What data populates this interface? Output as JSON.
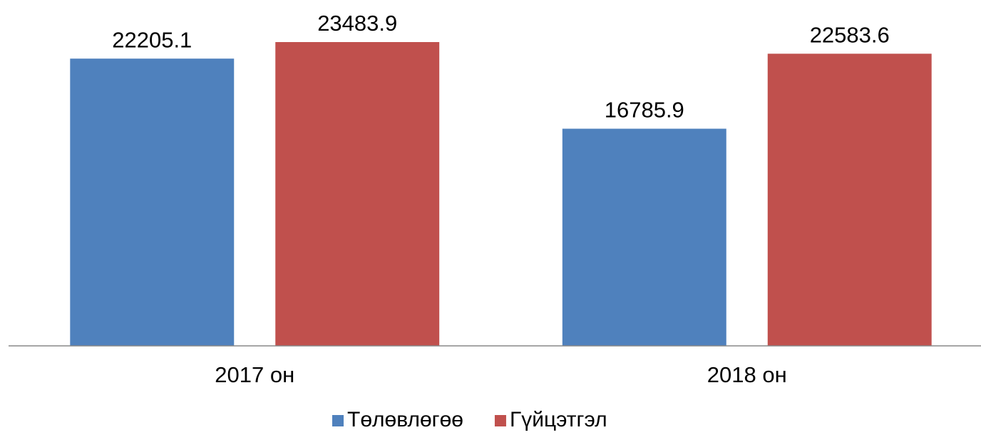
{
  "chart_data": {
    "type": "bar",
    "categories": [
      "2017 он",
      "2018 он"
    ],
    "series": [
      {
        "name": "Төлөвлөгөө",
        "color": "#4f81bd",
        "values": [
          22205.1,
          16785.9
        ]
      },
      {
        "name": "Гүйцэтгэл",
        "color": "#c0504d",
        "values": [
          23483.9,
          22583.6
        ]
      }
    ],
    "ylim": [
      0,
      25000
    ],
    "legend": "bottom"
  }
}
